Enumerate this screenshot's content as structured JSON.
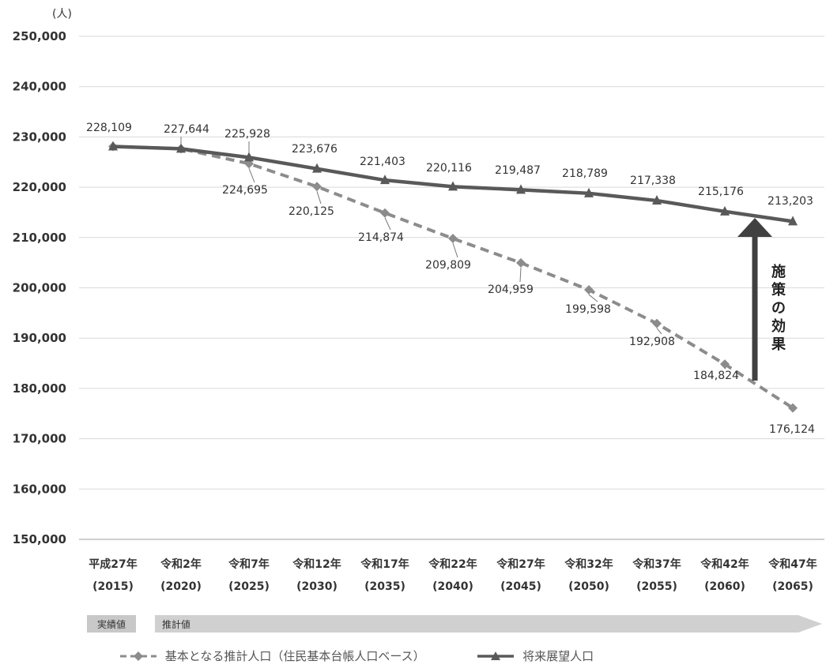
{
  "chart_data": {
    "type": "line",
    "unit_label": "(人)",
    "x_labels": [
      "平成27年",
      "令和2年",
      "令和7年",
      "令和12年",
      "令和17年",
      "令和22年",
      "令和27年",
      "令和32年",
      "令和37年",
      "令和42年",
      "令和47年"
    ],
    "x_years": [
      "(2015)",
      "(2020)",
      "(2025)",
      "(2030)",
      "(2035)",
      "(2040)",
      "(2045)",
      "(2050)",
      "(2055)",
      "(2060)",
      "(2065)"
    ],
    "ylim": [
      150000,
      250000
    ],
    "y_ticks": [
      "150,000",
      "160,000",
      "170,000",
      "180,000",
      "190,000",
      "200,000",
      "210,000",
      "220,000",
      "230,000",
      "240,000",
      "250,000"
    ],
    "grid": true,
    "series": [
      {
        "name": "基本となる推計人口（住民基本台帳人口ベース）",
        "style": "dashed",
        "color": "#8c8c8c",
        "values": [
          228109,
          227644,
          224695,
          220125,
          214874,
          209809,
          204959,
          199598,
          192908,
          184824,
          176124
        ],
        "labels": [
          "",
          "",
          "224,695",
          "220,125",
          "214,874",
          "209,809",
          "204,959",
          "199,598",
          "192,908",
          "184,824",
          "176,124"
        ]
      },
      {
        "name": "将来展望人口",
        "style": "solid",
        "color": "#595959",
        "values": [
          228109,
          227644,
          225928,
          223676,
          221403,
          220116,
          219487,
          218789,
          217338,
          215176,
          213203
        ],
        "labels": [
          "228,109",
          "227,644",
          "225,928",
          "223,676",
          "221,403",
          "220,116",
          "219,487",
          "218,789",
          "217,338",
          "215,176",
          "213,203"
        ]
      }
    ],
    "annotation": "施策の効果",
    "band": {
      "actual_label": "実績値",
      "projected_label": "推計値"
    }
  }
}
